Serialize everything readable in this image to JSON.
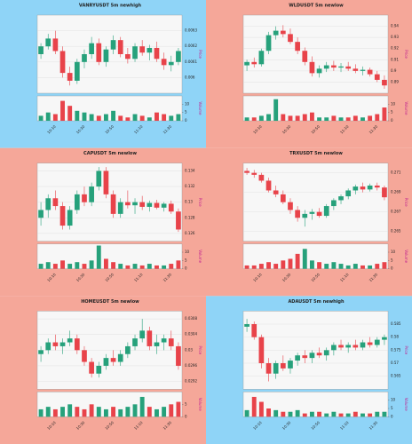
{
  "chart_data": [
    {
      "type": "candlestick",
      "title": "VANRYUSDT 5m newhigh",
      "background": "#8fd4f7",
      "up_color": "#26a17b",
      "down_color": "#e8434a",
      "grid": true,
      "y_label": "Price",
      "y2_label": "Volume",
      "categories": [
        null,
        null,
        "10:10",
        null,
        null,
        null,
        "10:30",
        null,
        null,
        null,
        "10:50",
        null,
        null,
        null,
        "11:10",
        null,
        null,
        null,
        "11:30",
        null
      ],
      "ohlc": [
        [
          0.00615,
          0.00622,
          0.00612,
          0.0062
        ],
        [
          0.0062,
          0.00628,
          0.00618,
          0.00625
        ],
        [
          0.00625,
          0.0063,
          0.00615,
          0.00617
        ],
        [
          0.00617,
          0.0062,
          0.006,
          0.00603
        ],
        [
          0.00603,
          0.00607,
          0.00595,
          0.00598
        ],
        [
          0.00598,
          0.00612,
          0.00596,
          0.0061
        ],
        [
          0.0061,
          0.00618,
          0.00606,
          0.00615
        ],
        [
          0.00615,
          0.00626,
          0.00612,
          0.00622
        ],
        [
          0.00622,
          0.00625,
          0.00608,
          0.0061
        ],
        [
          0.0061,
          0.0062,
          0.00607,
          0.00618
        ],
        [
          0.00618,
          0.00627,
          0.00615,
          0.00624
        ],
        [
          0.00624,
          0.00626,
          0.00613,
          0.00615
        ],
        [
          0.00615,
          0.00619,
          0.00609,
          0.00612
        ],
        [
          0.00612,
          0.00622,
          0.0061,
          0.0062
        ],
        [
          0.0062,
          0.00624,
          0.00614,
          0.00616
        ],
        [
          0.00616,
          0.00621,
          0.00611,
          0.00619
        ],
        [
          0.00619,
          0.00623,
          0.0061,
          0.00612
        ],
        [
          0.00612,
          0.00616,
          0.00605,
          0.00608
        ],
        [
          0.00608,
          0.00614,
          0.00604,
          0.0061
        ],
        [
          0.0061,
          0.00619,
          0.00608,
          0.00617
        ]
      ],
      "volume": [
        3,
        5,
        4,
        12,
        9,
        6,
        5,
        4,
        3,
        4,
        6,
        3,
        2,
        4,
        3,
        2,
        5,
        4,
        3,
        4
      ],
      "ylim": [
        0.0059,
        0.0064
      ],
      "yticks": [
        0.006,
        0.0061,
        0.0062,
        0.0063
      ],
      "y2lim": [
        0,
        15
      ],
      "y2ticks": [
        0,
        5,
        10
      ]
    },
    {
      "type": "candlestick",
      "title": "WLDUSDT 5m newlow",
      "background": "#f5a799",
      "up_color": "#26a17b",
      "down_color": "#e8434a",
      "grid": true,
      "y_label": "Price",
      "y2_label": "Volume",
      "categories": [
        null,
        null,
        "10:10",
        null,
        null,
        null,
        "10:30",
        null,
        null,
        null,
        "10:50",
        null,
        null,
        null,
        "11:10",
        null,
        null,
        null,
        "11:30",
        null
      ],
      "ohlc": [
        [
          0.905,
          0.91,
          0.9,
          0.908
        ],
        [
          0.908,
          0.912,
          0.903,
          0.906
        ],
        [
          0.906,
          0.92,
          0.904,
          0.918
        ],
        [
          0.918,
          0.935,
          0.915,
          0.932
        ],
        [
          0.932,
          0.94,
          0.928,
          0.936
        ],
        [
          0.936,
          0.941,
          0.93,
          0.933
        ],
        [
          0.933,
          0.938,
          0.924,
          0.926
        ],
        [
          0.926,
          0.93,
          0.915,
          0.918
        ],
        [
          0.918,
          0.921,
          0.905,
          0.908
        ],
        [
          0.908,
          0.913,
          0.895,
          0.898
        ],
        [
          0.898,
          0.905,
          0.894,
          0.902
        ],
        [
          0.902,
          0.908,
          0.899,
          0.905
        ],
        [
          0.905,
          0.909,
          0.9,
          0.903
        ],
        [
          0.903,
          0.907,
          0.899,
          0.904
        ],
        [
          0.904,
          0.908,
          0.9,
          0.902
        ],
        [
          0.902,
          0.906,
          0.898,
          0.9
        ],
        [
          0.9,
          0.904,
          0.896,
          0.901
        ],
        [
          0.901,
          0.903,
          0.895,
          0.897
        ],
        [
          0.897,
          0.9,
          0.89,
          0.892
        ],
        [
          0.892,
          0.896,
          0.884,
          0.887
        ]
      ],
      "volume": [
        2,
        2,
        3,
        4,
        13,
        4,
        3,
        3,
        4,
        5,
        2,
        2,
        3,
        2,
        2,
        3,
        2,
        3,
        4,
        8
      ],
      "ylim": [
        0.88,
        0.95
      ],
      "yticks": [
        0.89,
        0.9,
        0.91,
        0.92,
        0.93,
        0.94
      ],
      "y2lim": [
        0,
        15
      ],
      "y2ticks": [
        0,
        5,
        10
      ]
    },
    {
      "type": "candlestick",
      "title": "CAPUSDT 5m newlow",
      "background": "#f5a799",
      "up_color": "#26a17b",
      "down_color": "#e8434a",
      "grid": true,
      "y_label": "Price",
      "y2_label": "Volume",
      "categories": [
        null,
        null,
        "10:10",
        null,
        null,
        null,
        "10:30",
        null,
        null,
        null,
        "10:50",
        null,
        null,
        null,
        "11:10",
        null,
        null,
        null,
        "11:30",
        null
      ],
      "ohlc": [
        [
          0.128,
          0.13,
          0.127,
          0.129
        ],
        [
          0.129,
          0.131,
          0.128,
          0.1305
        ],
        [
          0.1305,
          0.1315,
          0.129,
          0.1295
        ],
        [
          0.1295,
          0.13,
          0.1265,
          0.127
        ],
        [
          0.127,
          0.1295,
          0.1265,
          0.129
        ],
        [
          0.129,
          0.1315,
          0.1285,
          0.131
        ],
        [
          0.131,
          0.132,
          0.1295,
          0.13
        ],
        [
          0.13,
          0.1325,
          0.1295,
          0.132
        ],
        [
          0.132,
          0.1345,
          0.1315,
          0.134
        ],
        [
          0.134,
          0.1345,
          0.1305,
          0.131
        ],
        [
          0.131,
          0.1315,
          0.128,
          0.1285
        ],
        [
          0.1285,
          0.1305,
          0.128,
          0.13
        ],
        [
          0.13,
          0.1315,
          0.1292,
          0.1296
        ],
        [
          0.1296,
          0.1305,
          0.1285,
          0.13
        ],
        [
          0.13,
          0.1308,
          0.129,
          0.1294
        ],
        [
          0.1294,
          0.1302,
          0.1288,
          0.1299
        ],
        [
          0.1299,
          0.1303,
          0.1291,
          0.1293
        ],
        [
          0.1293,
          0.13,
          0.1288,
          0.1298
        ],
        [
          0.1298,
          0.1302,
          0.1285,
          0.1288
        ],
        [
          0.1288,
          0.1292,
          0.1262,
          0.1265
        ]
      ],
      "volume": [
        3,
        4,
        3,
        5,
        3,
        4,
        3,
        5,
        14,
        6,
        4,
        3,
        2,
        3,
        2,
        3,
        2,
        2,
        3,
        5
      ],
      "ylim": [
        0.125,
        0.135
      ],
      "yticks": [
        0.126,
        0.128,
        0.13,
        0.132,
        0.134
      ],
      "y2lim": [
        0,
        15
      ],
      "y2ticks": [
        0,
        5,
        10
      ]
    },
    {
      "type": "candlestick",
      "title": "TRXUSDT 5m newlow",
      "background": "#f5a799",
      "up_color": "#26a17b",
      "down_color": "#e8434a",
      "grid": true,
      "y_label": "Price",
      "y2_label": "Volume",
      "categories": [
        null,
        null,
        "10:10",
        null,
        null,
        null,
        "10:30",
        null,
        null,
        null,
        "10:50",
        null,
        null,
        null,
        "11:10",
        null,
        null,
        null,
        "11:30",
        null
      ],
      "ohlc": [
        [
          0.2712,
          0.2715,
          0.2708,
          0.271
        ],
        [
          0.271,
          0.2713,
          0.2705,
          0.2708
        ],
        [
          0.2708,
          0.271,
          0.27,
          0.2702
        ],
        [
          0.2702,
          0.2705,
          0.269,
          0.2692
        ],
        [
          0.2692,
          0.2697,
          0.2685,
          0.2688
        ],
        [
          0.2688,
          0.2692,
          0.2678,
          0.268
        ],
        [
          0.268,
          0.2684,
          0.2668,
          0.2672
        ],
        [
          0.2672,
          0.2676,
          0.266,
          0.2664
        ],
        [
          0.2664,
          0.2672,
          0.2655,
          0.2668
        ],
        [
          0.2668,
          0.2673,
          0.2662,
          0.267
        ],
        [
          0.267,
          0.2674,
          0.2664,
          0.2666
        ],
        [
          0.2666,
          0.2678,
          0.2664,
          0.2676
        ],
        [
          0.2676,
          0.2684,
          0.2672,
          0.2682
        ],
        [
          0.2682,
          0.2688,
          0.2678,
          0.2686
        ],
        [
          0.2686,
          0.2694,
          0.2683,
          0.2692
        ],
        [
          0.2692,
          0.2698,
          0.2688,
          0.2696
        ],
        [
          0.2696,
          0.27,
          0.269,
          0.2693
        ],
        [
          0.2693,
          0.2699,
          0.2691,
          0.2697
        ],
        [
          0.2697,
          0.27,
          0.2692,
          0.2695
        ],
        [
          0.2695,
          0.2697,
          0.2682,
          0.2685
        ]
      ],
      "volume": [
        2,
        2,
        3,
        4,
        3,
        5,
        6,
        9,
        12,
        5,
        4,
        3,
        4,
        3,
        2,
        3,
        2,
        2,
        3,
        4
      ],
      "ylim": [
        0.264,
        0.272
      ],
      "yticks": [
        0.265,
        0.267,
        0.269,
        0.271
      ],
      "y2lim": [
        0,
        15
      ],
      "y2ticks": [
        0,
        5,
        10
      ]
    },
    {
      "type": "candlestick",
      "title": "HOMEUSDT 5m newlow",
      "background": "#f5a799",
      "up_color": "#26a17b",
      "down_color": "#e8434a",
      "grid": true,
      "y_label": "Price",
      "y2_label": "Volume",
      "categories": [
        null,
        null,
        "10:10",
        null,
        null,
        null,
        "10:30",
        null,
        null,
        null,
        "10:50",
        null,
        null,
        null,
        "11:10",
        null,
        null,
        null,
        "11:30",
        null
      ],
      "ohlc": [
        [
          0.0299,
          0.0301,
          0.0297,
          0.03
        ],
        [
          0.03,
          0.0303,
          0.0299,
          0.0302
        ],
        [
          0.0302,
          0.0304,
          0.03,
          0.0301
        ],
        [
          0.0301,
          0.0303,
          0.0299,
          0.0302
        ],
        [
          0.0302,
          0.0305,
          0.0301,
          0.0303
        ],
        [
          0.0303,
          0.0304,
          0.0299,
          0.03
        ],
        [
          0.03,
          0.0301,
          0.0296,
          0.0297
        ],
        [
          0.0297,
          0.0298,
          0.0293,
          0.0294
        ],
        [
          0.0294,
          0.0297,
          0.0293,
          0.0296
        ],
        [
          0.0296,
          0.0299,
          0.0295,
          0.0298
        ],
        [
          0.0298,
          0.03,
          0.0296,
          0.0297
        ],
        [
          0.0297,
          0.03,
          0.0296,
          0.0299
        ],
        [
          0.0299,
          0.0302,
          0.0298,
          0.0301
        ],
        [
          0.0301,
          0.0304,
          0.03,
          0.0303
        ],
        [
          0.0303,
          0.0308,
          0.0302,
          0.0305
        ],
        [
          0.0305,
          0.0306,
          0.03,
          0.0301
        ],
        [
          0.0301,
          0.0304,
          0.0299,
          0.0302
        ],
        [
          0.0302,
          0.0304,
          0.03,
          0.0303
        ],
        [
          0.0303,
          0.0305,
          0.03,
          0.0301
        ],
        [
          0.0301,
          0.0302,
          0.0295,
          0.0296
        ]
      ],
      "volume": [
        3,
        4,
        3,
        4,
        5,
        4,
        3,
        5,
        4,
        3,
        4,
        3,
        4,
        5,
        8,
        4,
        3,
        4,
        5,
        6
      ],
      "ylim": [
        0.029,
        0.031
      ],
      "yticks": [
        0.0292,
        0.0296,
        0.03,
        0.0304,
        0.0308
      ],
      "y2lim": [
        0,
        10
      ],
      "y2ticks": [
        0,
        5
      ]
    },
    {
      "type": "candlestick",
      "title": "ADAUSDT 5m newhigh",
      "background": "#8fd4f7",
      "up_color": "#26a17b",
      "down_color": "#e8434a",
      "grid": true,
      "y_label": "Price",
      "y2_label": "Volume",
      "categories": [
        null,
        null,
        "10:10",
        null,
        null,
        null,
        "10:30",
        null,
        null,
        null,
        "10:50",
        null,
        null,
        null,
        "11:10",
        null,
        null,
        null,
        "11:30",
        null
      ],
      "ohlc": [
        [
          0.584,
          0.587,
          0.582,
          0.585
        ],
        [
          0.585,
          0.586,
          0.579,
          0.58
        ],
        [
          0.58,
          0.581,
          0.568,
          0.57
        ],
        [
          0.57,
          0.572,
          0.563,
          0.566
        ],
        [
          0.566,
          0.571,
          0.564,
          0.57
        ],
        [
          0.57,
          0.573,
          0.567,
          0.568
        ],
        [
          0.568,
          0.572,
          0.566,
          0.571
        ],
        [
          0.571,
          0.574,
          0.569,
          0.573
        ],
        [
          0.573,
          0.575,
          0.57,
          0.572
        ],
        [
          0.572,
          0.575,
          0.57,
          0.574
        ],
        [
          0.574,
          0.576,
          0.572,
          0.573
        ],
        [
          0.573,
          0.576,
          0.571,
          0.575
        ],
        [
          0.575,
          0.578,
          0.573,
          0.577
        ],
        [
          0.577,
          0.579,
          0.575,
          0.576
        ],
        [
          0.576,
          0.578,
          0.574,
          0.577
        ],
        [
          0.577,
          0.579,
          0.575,
          0.576
        ],
        [
          0.576,
          0.579,
          0.575,
          0.578
        ],
        [
          0.578,
          0.58,
          0.576,
          0.577
        ],
        [
          0.577,
          0.58,
          0.576,
          0.579
        ],
        [
          0.579,
          0.581,
          0.577,
          0.58
        ]
      ],
      "volume": [
        4,
        12,
        9,
        5,
        4,
        3,
        3,
        4,
        2,
        3,
        3,
        2,
        3,
        2,
        2,
        3,
        2,
        2,
        3,
        3
      ],
      "ylim": [
        0.56,
        0.59
      ],
      "yticks": [
        0.565,
        0.57,
        0.575,
        0.58,
        0.585
      ],
      "y2lim": [
        0,
        15
      ],
      "y2ticks": [
        0,
        5,
        10
      ]
    }
  ]
}
